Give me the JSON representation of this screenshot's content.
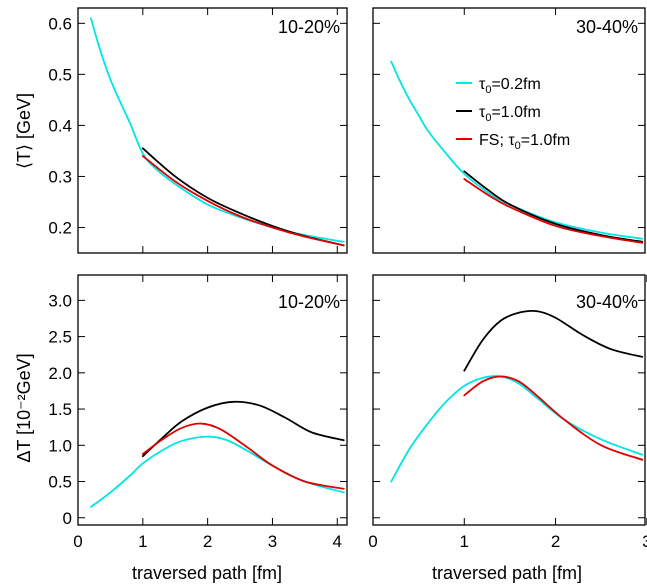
{
  "chart_data": [
    {
      "type": "line",
      "panel": "top-left",
      "label": "10-20%",
      "ylabel": "⟨T⟩ [GeV]",
      "xlabel": "",
      "xlim": [
        0,
        4.15
      ],
      "ylim": [
        0.15,
        0.63
      ],
      "xticks": [
        0,
        1,
        2,
        3,
        4
      ],
      "yticks": [
        0.2,
        0.3,
        0.4,
        0.5,
        0.6
      ],
      "ytick_labels": [
        "0.2",
        "0.3",
        "0.4",
        "0.5",
        "0.6"
      ],
      "series": [
        {
          "ref": "tau02",
          "color": "#00e5e5",
          "x": [
            0.2,
            0.3,
            0.4,
            0.5,
            0.6,
            0.8,
            1.0,
            1.2,
            1.5,
            2.0,
            2.5,
            3.0,
            3.5,
            4.1
          ],
          "y": [
            0.61,
            0.565,
            0.525,
            0.49,
            0.46,
            0.405,
            0.345,
            0.315,
            0.285,
            0.245,
            0.22,
            0.2,
            0.185,
            0.172
          ]
        },
        {
          "ref": "tau10",
          "color": "#000000",
          "x": [
            1.0,
            1.5,
            2.0,
            2.5,
            3.0,
            3.5,
            4.1
          ],
          "y": [
            0.355,
            0.3,
            0.258,
            0.228,
            0.203,
            0.183,
            0.165
          ]
        },
        {
          "ref": "fs",
          "color": "#e00000",
          "x": [
            1.0,
            1.5,
            2.0,
            2.5,
            3.0,
            3.5,
            4.1
          ],
          "y": [
            0.34,
            0.29,
            0.252,
            0.222,
            0.2,
            0.182,
            0.165
          ]
        }
      ]
    },
    {
      "type": "line",
      "panel": "top-right",
      "label": "30-40%",
      "ylabel": "",
      "xlabel": "",
      "xlim": [
        0,
        2.98
      ],
      "ylim": [
        0.15,
        0.63
      ],
      "xticks": [
        0,
        1,
        2
      ],
      "yticks": [
        0.2,
        0.3,
        0.4,
        0.5,
        0.6
      ],
      "ytick_labels": [
        "",
        "",
        "",
        "",
        ""
      ],
      "series": [
        {
          "ref": "tau02",
          "color": "#00e5e5",
          "x": [
            0.2,
            0.3,
            0.4,
            0.5,
            0.6,
            0.8,
            1.0,
            1.25,
            1.5,
            2.0,
            2.5,
            2.95
          ],
          "y": [
            0.525,
            0.485,
            0.45,
            0.42,
            0.39,
            0.345,
            0.305,
            0.27,
            0.245,
            0.21,
            0.19,
            0.178
          ]
        },
        {
          "ref": "tau10",
          "color": "#000000",
          "x": [
            1.0,
            1.25,
            1.5,
            2.0,
            2.5,
            2.95
          ],
          "y": [
            0.31,
            0.275,
            0.245,
            0.207,
            0.185,
            0.172
          ]
        },
        {
          "ref": "fs",
          "color": "#e00000",
          "x": [
            1.0,
            1.25,
            1.5,
            2.0,
            2.5,
            2.95
          ],
          "y": [
            0.295,
            0.265,
            0.24,
            0.203,
            0.183,
            0.17
          ]
        }
      ]
    },
    {
      "type": "line",
      "panel": "bottom-left",
      "label": "10-20%",
      "ylabel": "ΔT [10⁻²GeV]",
      "xlabel": "traversed path [fm]",
      "xlim": [
        0,
        4.15
      ],
      "ylim": [
        -0.1,
        3.35
      ],
      "xticks": [
        0,
        1,
        2,
        3,
        4
      ],
      "xtick_labels": [
        "0",
        "1",
        "2",
        "3",
        "4"
      ],
      "yticks": [
        0,
        0.5,
        1.0,
        1.5,
        2.0,
        2.5,
        3.0
      ],
      "ytick_labels": [
        "0",
        "0.5",
        "1.0",
        "1.5",
        "2.0",
        "2.5",
        "3.0"
      ],
      "series": [
        {
          "ref": "tau02",
          "color": "#00e5e5",
          "x": [
            0.2,
            0.5,
            0.8,
            1.0,
            1.3,
            1.6,
            2.0,
            2.3,
            2.6,
            3.0,
            3.5,
            4.1
          ],
          "y": [
            0.15,
            0.35,
            0.58,
            0.75,
            0.93,
            1.06,
            1.12,
            1.07,
            0.93,
            0.72,
            0.5,
            0.35
          ]
        },
        {
          "ref": "tau10",
          "color": "#000000",
          "x": [
            1.0,
            1.3,
            1.6,
            2.0,
            2.4,
            2.8,
            3.2,
            3.6,
            4.1
          ],
          "y": [
            0.85,
            1.1,
            1.33,
            1.52,
            1.6,
            1.55,
            1.38,
            1.18,
            1.07
          ]
        },
        {
          "ref": "fs",
          "color": "#e00000",
          "x": [
            1.0,
            1.3,
            1.6,
            1.9,
            2.2,
            2.6,
            3.0,
            3.5,
            4.1
          ],
          "y": [
            0.88,
            1.08,
            1.24,
            1.3,
            1.22,
            0.98,
            0.72,
            0.5,
            0.4
          ]
        }
      ]
    },
    {
      "type": "line",
      "panel": "bottom-right",
      "label": "30-40%",
      "ylabel": "",
      "xlabel": "traversed path [fm]",
      "xlim": [
        0,
        2.98
      ],
      "ylim": [
        -0.1,
        3.35
      ],
      "xticks": [
        0,
        1,
        2,
        3
      ],
      "xtick_labels": [
        "0",
        "1",
        "2",
        "3"
      ],
      "yticks": [
        0,
        0.5,
        1.0,
        1.5,
        2.0,
        2.5,
        3.0
      ],
      "ytick_labels": [
        "",
        "",
        "",
        "",
        "",
        "",
        ""
      ],
      "series": [
        {
          "ref": "tau02",
          "color": "#00e5e5",
          "x": [
            0.2,
            0.4,
            0.6,
            0.8,
            1.0,
            1.2,
            1.4,
            1.6,
            1.8,
            2.1,
            2.5,
            2.95
          ],
          "y": [
            0.5,
            0.95,
            1.3,
            1.6,
            1.82,
            1.93,
            1.95,
            1.85,
            1.65,
            1.35,
            1.08,
            0.87
          ]
        },
        {
          "ref": "tau10",
          "color": "#000000",
          "x": [
            1.0,
            1.2,
            1.4,
            1.6,
            1.8,
            2.0,
            2.3,
            2.6,
            2.95
          ],
          "y": [
            2.03,
            2.45,
            2.72,
            2.83,
            2.85,
            2.76,
            2.52,
            2.33,
            2.22
          ]
        },
        {
          "ref": "fs",
          "color": "#e00000",
          "x": [
            1.0,
            1.2,
            1.4,
            1.6,
            1.8,
            2.1,
            2.5,
            2.95
          ],
          "y": [
            1.69,
            1.88,
            1.95,
            1.88,
            1.68,
            1.35,
            1.0,
            0.8
          ]
        }
      ]
    }
  ],
  "legend": {
    "placement": "top-right panel, right side",
    "entries": [
      {
        "label_prefix": "τ",
        "label_sub": "0",
        "label_suffix": "=0.2fm",
        "color": "#00e5e5"
      },
      {
        "label_prefix": "τ",
        "label_sub": "0",
        "label_suffix": "=1.0fm",
        "color": "#000000"
      },
      {
        "label_prefix": "FS; τ",
        "label_sub": "0",
        "label_suffix": "=1.0fm",
        "color": "#e00000"
      }
    ]
  }
}
